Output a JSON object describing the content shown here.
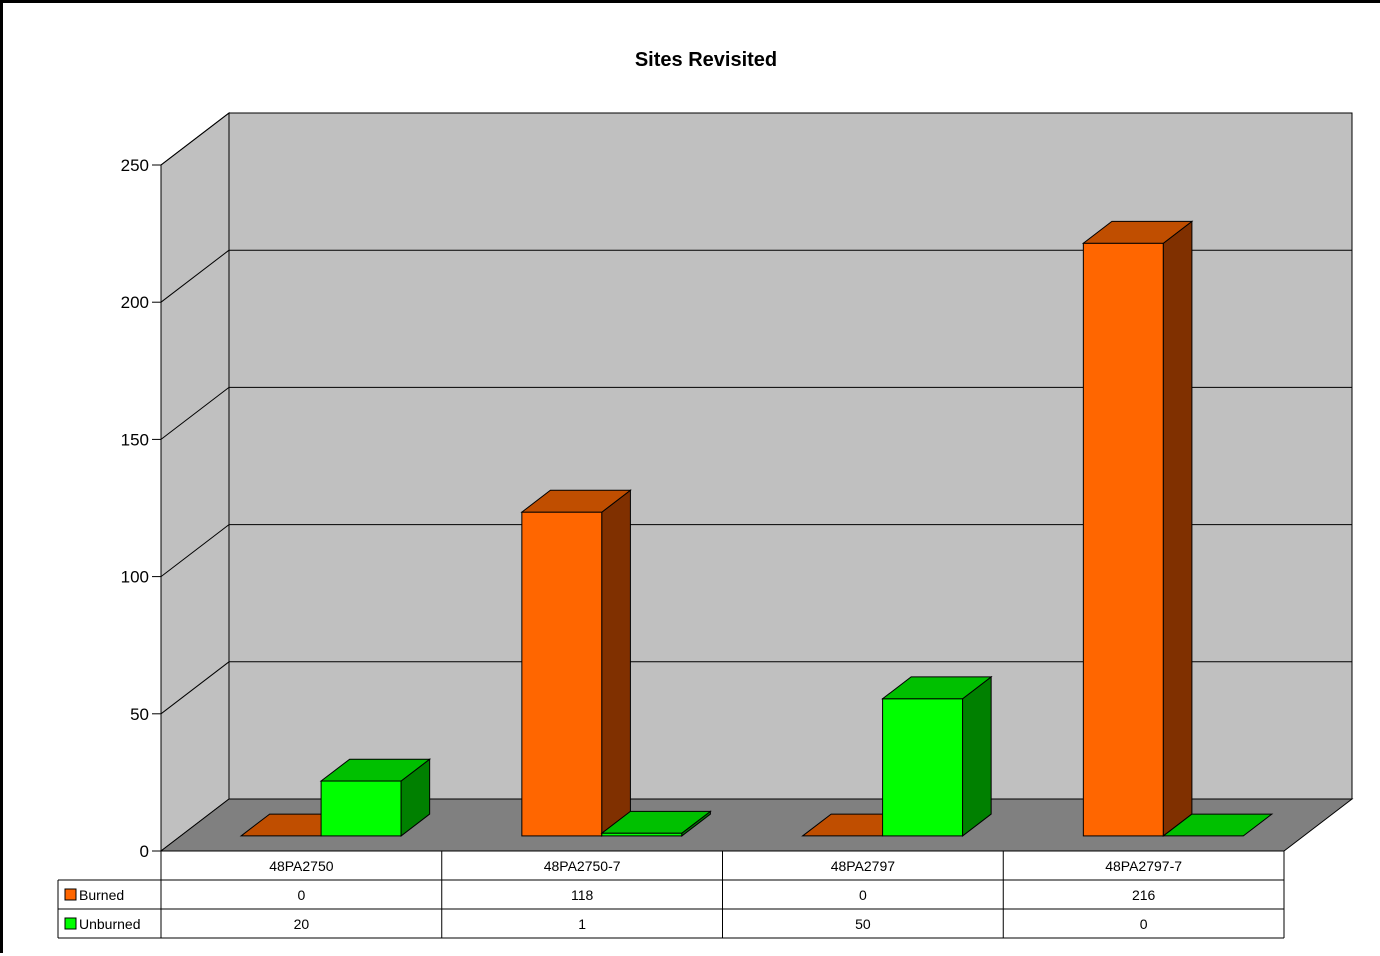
{
  "chart_data": {
    "type": "bar",
    "title": "Sites Revisited",
    "xlabel": "",
    "ylabel": "",
    "categories": [
      "48PA2750",
      "48PA2750-7",
      "48PA2797",
      "48PA2797-7"
    ],
    "series": [
      {
        "name": "Burned",
        "values": [
          0,
          118,
          0,
          216
        ],
        "color": "#ff6600"
      },
      {
        "name": "Unburned",
        "values": [
          20,
          1,
          50,
          0
        ],
        "color": "#00ff00"
      }
    ],
    "ylim": [
      0,
      250
    ],
    "yticks": [
      "0",
      "50",
      "100",
      "150",
      "200",
      "250"
    ],
    "grid": true,
    "style": "3d-clustered-column",
    "data_table": true,
    "colors": {
      "wall": "#c0c0c0",
      "floor": "#808080",
      "burned_front": "#ff6600",
      "burned_top": "#c04e00",
      "burned_side": "#803000",
      "unburned_front": "#00ff00",
      "unburned_top": "#00c000",
      "unburned_side": "#008000"
    }
  }
}
